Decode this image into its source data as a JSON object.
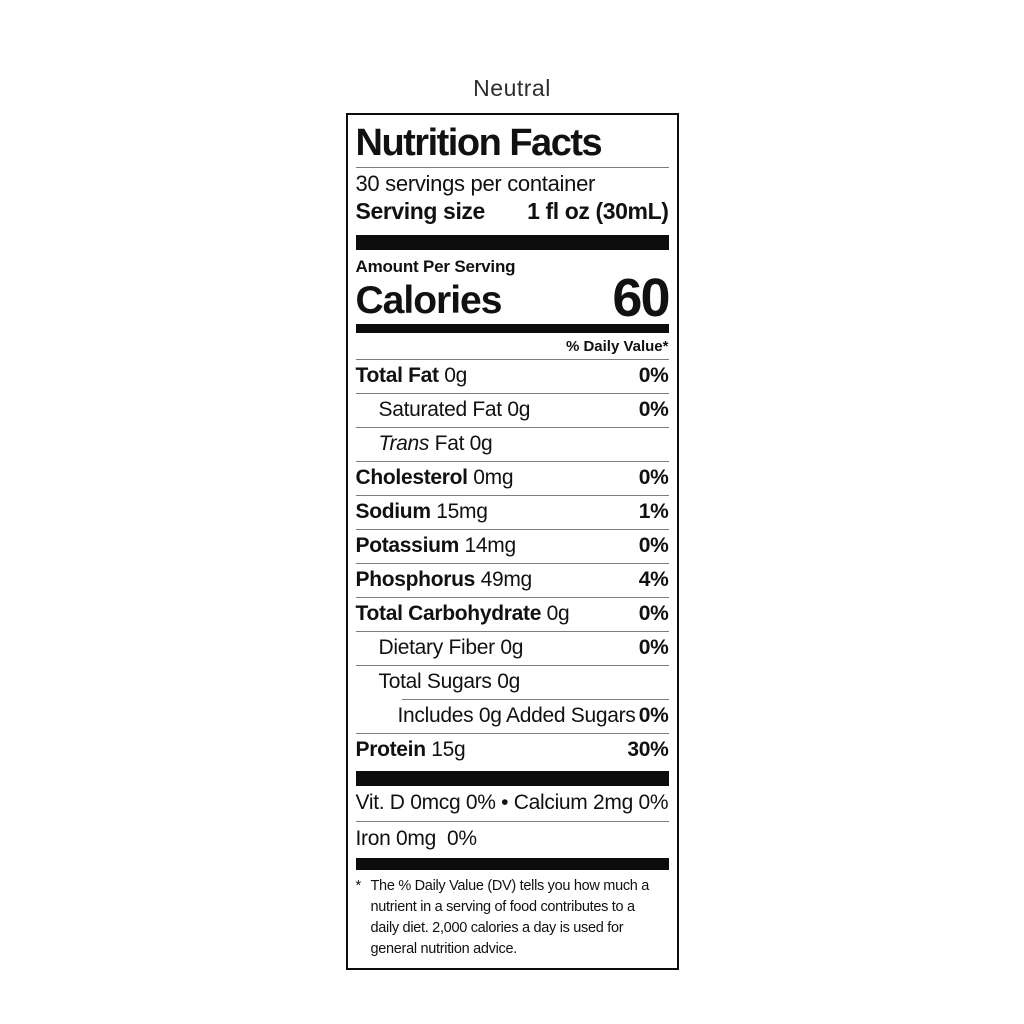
{
  "page": {
    "product_title": "Neutral"
  },
  "colors": {
    "text": "#111111",
    "hairline": "#7d7d7d",
    "bar": "#0d0d0d",
    "border": "#0d0d0d",
    "background": "#ffffff",
    "title_text": "#2e2e2e"
  },
  "label": {
    "title": "Nutrition Facts",
    "servings_per_container": "30 servings per container",
    "serving_size_label": "Serving size",
    "serving_size_value": "1 fl oz (30mL)",
    "amount_per_serving": "Amount Per Serving",
    "calories_label": "Calories",
    "calories_value": "60",
    "daily_value_header": "% Daily Value*",
    "rows": [
      {
        "name": "Total Fat",
        "amount": "0g",
        "dv": "0%",
        "bold": true,
        "italic": false,
        "indent": 0,
        "sep_indent": false
      },
      {
        "name": "Saturated Fat",
        "amount": "0g",
        "dv": "0%",
        "bold": false,
        "italic": false,
        "indent": 1,
        "sep_indent": false
      },
      {
        "name": "Trans",
        "amount": "Fat 0g",
        "dv": "",
        "bold": false,
        "italic": true,
        "indent": 1,
        "sep_indent": false
      },
      {
        "name": "Cholesterol",
        "amount": "0mg",
        "dv": "0%",
        "bold": true,
        "italic": false,
        "indent": 0,
        "sep_indent": false
      },
      {
        "name": "Sodium",
        "amount": "15mg",
        "dv": "1%",
        "bold": true,
        "italic": false,
        "indent": 0,
        "sep_indent": false
      },
      {
        "name": "Potassium",
        "amount": "14mg",
        "dv": "0%",
        "bold": true,
        "italic": false,
        "indent": 0,
        "sep_indent": false
      },
      {
        "name": "Phosphorus",
        "amount": "49mg",
        "dv": "4%",
        "bold": true,
        "italic": false,
        "indent": 0,
        "sep_indent": false
      },
      {
        "name": "Total Carbohydrate",
        "amount": "0g",
        "dv": "0%",
        "bold": true,
        "italic": false,
        "indent": 0,
        "sep_indent": false
      },
      {
        "name": "Dietary Fiber",
        "amount": "0g",
        "dv": "0%",
        "bold": false,
        "italic": false,
        "indent": 1,
        "sep_indent": false
      },
      {
        "name": "Total Sugars",
        "amount": "0g",
        "dv": "",
        "bold": false,
        "italic": false,
        "indent": 1,
        "sep_indent": false
      },
      {
        "name": "Includes 0g Added Sugars",
        "amount": "",
        "dv": "0%",
        "bold": false,
        "italic": false,
        "indent": 2,
        "sep_indent": true
      },
      {
        "name": "Protein",
        "amount": "15g",
        "dv": "30%",
        "bold": true,
        "italic": false,
        "indent": 0,
        "sep_indent": false
      }
    ],
    "vitamins": [
      "Vit. D 0mcg 0% • Calcium 2mg 0%",
      "Iron 0mg  0%"
    ],
    "footnote_marker": "*",
    "footnote": "The % Daily Value (DV) tells you how much a\nnutrient in a serving of food contributes to a\ndaily diet. 2,000 calories a day is used for\ngeneral nutrition advice."
  }
}
